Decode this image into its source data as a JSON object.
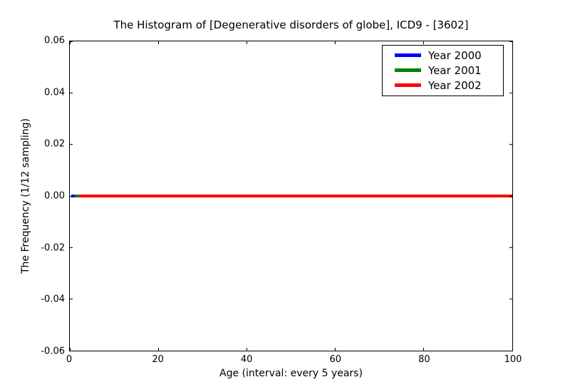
{
  "chart_data": {
    "type": "line",
    "title": "The Histogram of [Degenerative disorders of globe], ICD9 - [3602]",
    "xlabel": "Age (interval: every 5 years)",
    "ylabel": "The Frequency (1/12 sampling)",
    "xlim": [
      0,
      100
    ],
    "ylim": [
      -0.06,
      0.06
    ],
    "x_ticks": [
      "0",
      "20",
      "40",
      "60",
      "80",
      "100"
    ],
    "y_ticks": [
      "0.06",
      "0.04",
      "0.02",
      "0.00",
      "-0.02",
      "-0.04",
      "-0.06"
    ],
    "grid": false,
    "legend_position": "upper right",
    "x": [
      0,
      5,
      10,
      15,
      20,
      25,
      30,
      35,
      40,
      45,
      50,
      55,
      60,
      65,
      70,
      75,
      80,
      85,
      90,
      95,
      100
    ],
    "series": [
      {
        "name": "Year 2000",
        "color": "#0000ff",
        "values": [
          0,
          0,
          0,
          0,
          0,
          0,
          0,
          0,
          0,
          0,
          0,
          0,
          0,
          0,
          0,
          0,
          0,
          0,
          0,
          0,
          0
        ]
      },
      {
        "name": "Year 2001",
        "color": "#008000",
        "values": [
          0,
          0,
          0,
          0,
          0,
          0,
          0,
          0,
          0,
          0,
          0,
          0,
          0,
          0,
          0,
          0,
          0,
          0,
          0,
          0,
          0
        ]
      },
      {
        "name": "Year 2002",
        "color": "#ff0000",
        "values": [
          0,
          0,
          0,
          0,
          0,
          0,
          0,
          0,
          0,
          0,
          0,
          0,
          0,
          0,
          0,
          0,
          0,
          0,
          0,
          0,
          0
        ]
      }
    ]
  }
}
